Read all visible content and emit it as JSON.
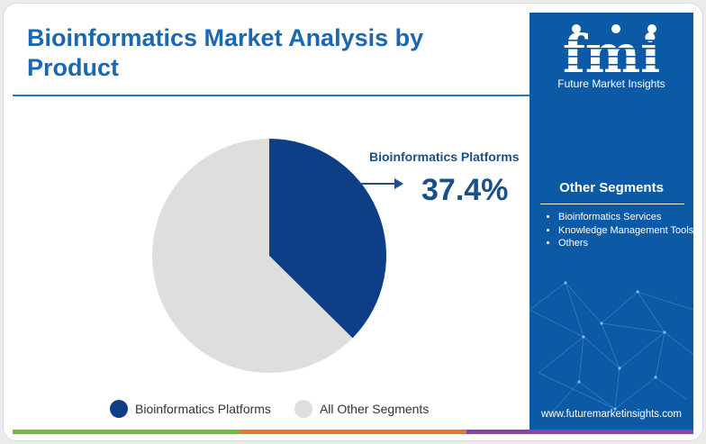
{
  "title": "Bioinformatics Market Analysis by Product",
  "logo": {
    "text": "fmi",
    "subtitle": "Future Market Insights"
  },
  "side_panel": {
    "heading": "Other Segments",
    "items": [
      "Bioinformatics Services",
      "Knowledge Management Tools",
      "Others"
    ],
    "url": "www.futuremarketinsights.com"
  },
  "callout": {
    "label": "Bioinformatics Platforms",
    "value": "37.4%"
  },
  "chart_data": {
    "type": "pie",
    "title": "Bioinformatics Market Analysis by Product",
    "slices": [
      {
        "label": "Bioinformatics Platforms",
        "value": 37.4,
        "color": "#0e3f86"
      },
      {
        "label": "All Other Segments",
        "value": 62.6,
        "color": "#dedede"
      }
    ],
    "start_angle_deg": 0,
    "direction": "clockwise",
    "legend_position": "bottom"
  },
  "colors": {
    "title": "#1b67b0",
    "panel": "#0c5aa6",
    "bottom_bar": [
      "#6cbf3d",
      "#e8782f",
      "#8e3fb3"
    ]
  }
}
